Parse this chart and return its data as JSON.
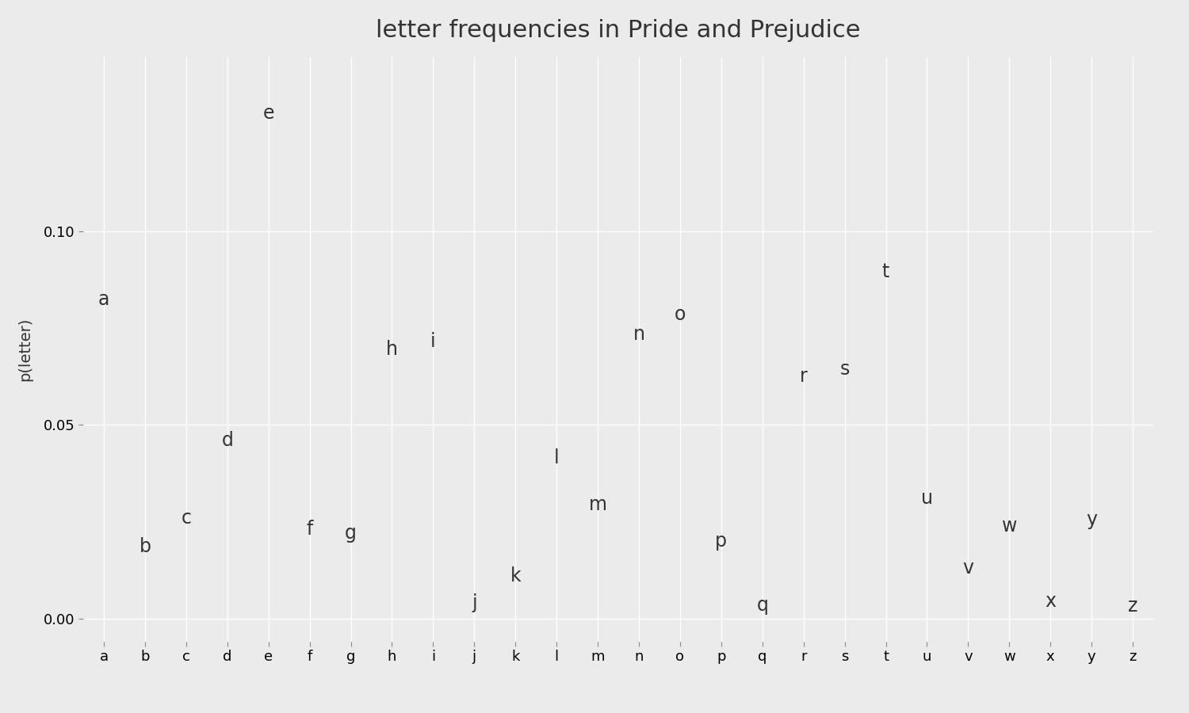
{
  "title": "letter frequencies in Pride and Prejudice",
  "ylabel": "p(letter)",
  "xlabel": "",
  "letters": [
    "a",
    "b",
    "c",
    "d",
    "e",
    "f",
    "g",
    "h",
    "i",
    "j",
    "k",
    "l",
    "m",
    "n",
    "o",
    "p",
    "q",
    "r",
    "s",
    "t",
    "u",
    "v",
    "w",
    "x",
    "y",
    "z"
  ],
  "frequencies": [
    0.08,
    0.016,
    0.0235,
    0.0435,
    0.128,
    0.0205,
    0.0195,
    0.067,
    0.069,
    0.0015,
    0.0085,
    0.039,
    0.027,
    0.071,
    0.076,
    0.0175,
    0.001,
    0.06,
    0.062,
    0.087,
    0.0285,
    0.0105,
    0.0215,
    0.002,
    0.023,
    0.0008
  ],
  "bg_color": "#EBEBEB",
  "text_color": "#333333",
  "grid_color": "#ffffff",
  "title_fontsize": 22,
  "label_fontsize": 14,
  "tick_fontsize": 13,
  "point_label_fontsize": 17,
  "ylim": [
    -0.006,
    0.145
  ],
  "yticks": [
    0.0,
    0.05,
    0.1
  ]
}
